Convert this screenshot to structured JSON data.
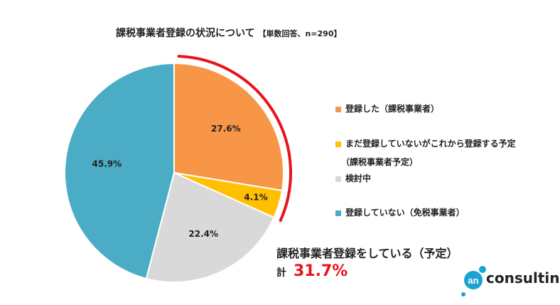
{
  "chart_data": {
    "type": "pie",
    "title": "課税事業者登録の状況について",
    "subtitle": "【単数回答、n=290】",
    "slices": [
      {
        "label": "登録した（課税事業者）",
        "value": 27.6,
        "data_label": "27.6%",
        "color": "#F79646"
      },
      {
        "label": "まだ登録していないがこれから登録する予定（課税事業者予定）",
        "label_line1": "まだ登録していないがこれから登録する予定",
        "label_line2": "（課税事業者予定）",
        "value": 4.1,
        "data_label": "4.1%",
        "color": "#FFC000"
      },
      {
        "label": "検討中",
        "value": 22.4,
        "data_label": "22.4%",
        "color": "#D9D9D9"
      },
      {
        "label": "登録していない（免税事業者）",
        "value": 45.9,
        "data_label": "45.9%",
        "color": "#4BACC6"
      }
    ],
    "legend_position": "right",
    "highlight": {
      "text": "課税事業者登録をしている（予定）",
      "total_label": "計",
      "total_value": "31.7%",
      "value": 31.7,
      "color": "#E8141C"
    }
  },
  "logo": {
    "mark": "an",
    "text": "consulting",
    "color": "#1BA3D1"
  }
}
